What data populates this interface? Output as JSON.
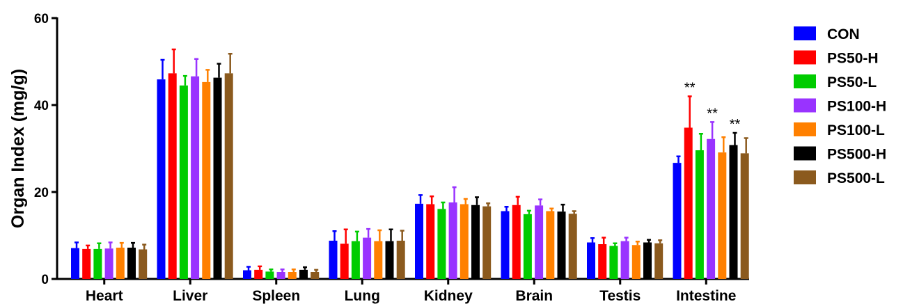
{
  "chart_data": {
    "type": "bar",
    "ylabel": "Organ Index (mg/g)",
    "ylim": [
      0,
      60
    ],
    "yticks": [
      0,
      20,
      40,
      60
    ],
    "categories": [
      "Heart",
      "Liver",
      "Spleen",
      "Lung",
      "Kidney",
      "Brain",
      "Testis",
      "Intestine"
    ],
    "legend_position": "right",
    "series": [
      {
        "name": "CON",
        "color": "#0000ff",
        "values": [
          7.1,
          45.9,
          2.0,
          8.8,
          17.3,
          15.6,
          8.4,
          26.7
        ],
        "errors": [
          1.3,
          4.5,
          0.8,
          2.2,
          2.0,
          1.0,
          1.0,
          1.5
        ]
      },
      {
        "name": "PS50-H",
        "color": "#ff0000",
        "values": [
          6.9,
          47.3,
          2.1,
          8.1,
          17.2,
          17.0,
          8.0,
          34.8
        ],
        "errors": [
          0.8,
          5.5,
          0.8,
          3.3,
          1.8,
          1.9,
          1.5,
          7.2
        ]
      },
      {
        "name": "PS50-L",
        "color": "#00cc00",
        "values": [
          6.9,
          44.5,
          1.7,
          8.7,
          16.1,
          14.9,
          7.6,
          29.6
        ],
        "errors": [
          1.3,
          2.2,
          0.5,
          2.2,
          1.5,
          0.8,
          0.6,
          3.8
        ]
      },
      {
        "name": "PS100-H",
        "color": "#9933ff",
        "values": [
          7.0,
          46.6,
          1.6,
          9.5,
          17.6,
          16.9,
          8.7,
          32.2
        ],
        "errors": [
          1.4,
          4.0,
          0.6,
          2.0,
          3.5,
          1.4,
          0.8,
          3.9
        ]
      },
      {
        "name": "PS100-L",
        "color": "#ff8000",
        "values": [
          7.2,
          45.3,
          1.6,
          8.7,
          17.2,
          15.6,
          7.8,
          29.1
        ],
        "errors": [
          1.1,
          2.8,
          0.6,
          2.5,
          1.2,
          0.6,
          0.8,
          3.5
        ]
      },
      {
        "name": "PS500-H",
        "color": "#000000",
        "values": [
          7.2,
          46.3,
          2.1,
          8.7,
          17.0,
          15.5,
          8.4,
          30.8
        ],
        "errors": [
          1.1,
          3.2,
          0.6,
          2.7,
          1.8,
          1.6,
          0.6,
          2.8
        ]
      },
      {
        "name": "PS500-L",
        "color": "#8b5a1e",
        "values": [
          6.8,
          47.3,
          1.6,
          8.8,
          16.7,
          15.0,
          8.2,
          28.9
        ],
        "errors": [
          1.1,
          4.5,
          0.5,
          2.3,
          0.7,
          0.6,
          0.7,
          3.5
        ]
      }
    ],
    "annotations": [
      {
        "text": "**",
        "category": "Intestine",
        "series": "PS50-H"
      },
      {
        "text": "**",
        "category": "Intestine",
        "series": "PS100-H"
      },
      {
        "text": "**",
        "category": "Intestine",
        "series": "PS500-H"
      }
    ]
  }
}
